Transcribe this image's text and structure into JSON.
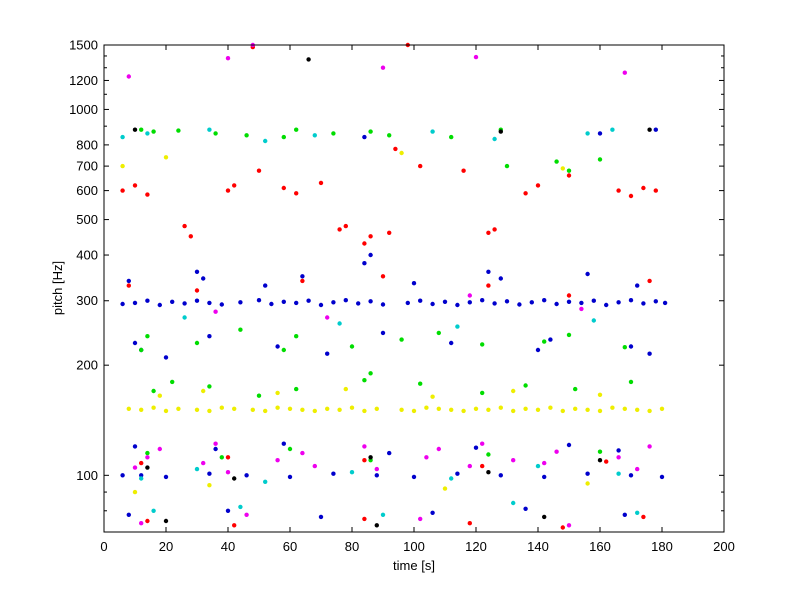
{
  "chart_data": {
    "type": "scatter",
    "title": "",
    "xlabel": "time [s]",
    "ylabel": "pitch [Hz]",
    "xlim": [
      0,
      200
    ],
    "ylim": [
      70,
      1500
    ],
    "y_scale": "log",
    "grid": false,
    "legend": "none",
    "x_ticks": [
      0,
      20,
      40,
      60,
      80,
      100,
      120,
      140,
      160,
      180,
      200
    ],
    "x_tick_labels": [
      "0",
      "20",
      "40",
      "60",
      "80",
      "100",
      "120",
      "140",
      "160",
      "180",
      "200"
    ],
    "y_ticks": [
      100,
      200,
      300,
      400,
      500,
      600,
      700,
      800,
      1000,
      1200,
      1500
    ],
    "y_tick_labels": [
      "100",
      "200",
      "300",
      "400",
      "500",
      "600",
      "700",
      "800",
      "1000",
      "1200",
      "1500"
    ],
    "series": [
      {
        "color": "#0000cc",
        "points": [
          [
            6,
            294
          ],
          [
            10,
            296
          ],
          [
            14,
            300
          ],
          [
            18,
            292
          ],
          [
            22,
            298
          ],
          [
            26,
            295
          ],
          [
            30,
            300
          ],
          [
            34,
            296
          ],
          [
            38,
            293
          ],
          [
            44,
            297
          ],
          [
            50,
            301
          ],
          [
            54,
            294
          ],
          [
            58,
            298
          ],
          [
            62,
            296
          ],
          [
            66,
            300
          ],
          [
            70,
            292
          ],
          [
            74,
            297
          ],
          [
            78,
            301
          ],
          [
            82,
            295
          ],
          [
            86,
            299
          ],
          [
            90,
            293
          ],
          [
            98,
            296
          ],
          [
            102,
            300
          ],
          [
            106,
            294
          ],
          [
            110,
            298
          ],
          [
            114,
            292
          ],
          [
            118,
            297
          ],
          [
            122,
            301
          ],
          [
            126,
            295
          ],
          [
            130,
            299
          ],
          [
            134,
            293
          ],
          [
            138,
            297
          ],
          [
            142,
            301
          ],
          [
            146,
            294
          ],
          [
            150,
            298
          ],
          [
            154,
            296
          ],
          [
            158,
            300
          ],
          [
            162,
            292
          ],
          [
            166,
            297
          ],
          [
            170,
            301
          ],
          [
            174,
            295
          ],
          [
            178,
            299
          ],
          [
            181,
            296
          ],
          [
            8,
            340
          ],
          [
            30,
            360
          ],
          [
            32,
            345
          ],
          [
            52,
            330
          ],
          [
            64,
            350
          ],
          [
            84,
            380
          ],
          [
            86,
            400
          ],
          [
            100,
            335
          ],
          [
            124,
            360
          ],
          [
            128,
            345
          ],
          [
            156,
            355
          ],
          [
            172,
            330
          ],
          [
            10,
            230
          ],
          [
            12,
            220
          ],
          [
            20,
            210
          ],
          [
            34,
            240
          ],
          [
            56,
            225
          ],
          [
            72,
            215
          ],
          [
            90,
            245
          ],
          [
            112,
            230
          ],
          [
            140,
            220
          ],
          [
            144,
            235
          ],
          [
            170,
            225
          ],
          [
            176,
            215
          ],
          [
            6,
            100
          ],
          [
            12,
            100
          ],
          [
            20,
            99
          ],
          [
            34,
            101
          ],
          [
            46,
            100
          ],
          [
            60,
            99
          ],
          [
            74,
            101
          ],
          [
            88,
            100
          ],
          [
            100,
            99
          ],
          [
            114,
            101
          ],
          [
            128,
            100
          ],
          [
            142,
            99
          ],
          [
            156,
            101
          ],
          [
            170,
            100
          ],
          [
            180,
            99
          ],
          [
            10,
            120
          ],
          [
            36,
            118
          ],
          [
            58,
            122
          ],
          [
            92,
            115
          ],
          [
            120,
            119
          ],
          [
            150,
            121
          ],
          [
            166,
            117
          ],
          [
            8,
            78
          ],
          [
            40,
            80
          ],
          [
            70,
            77
          ],
          [
            106,
            79
          ],
          [
            136,
            81
          ],
          [
            168,
            78
          ],
          [
            84,
            840
          ],
          [
            160,
            860
          ],
          [
            178,
            880
          ]
        ]
      },
      {
        "color": "#ff0000",
        "points": [
          [
            6,
            600
          ],
          [
            10,
            620
          ],
          [
            14,
            585
          ],
          [
            26,
            480
          ],
          [
            28,
            450
          ],
          [
            40,
            600
          ],
          [
            42,
            620
          ],
          [
            50,
            680
          ],
          [
            58,
            610
          ],
          [
            62,
            590
          ],
          [
            70,
            630
          ],
          [
            76,
            470
          ],
          [
            78,
            480
          ],
          [
            84,
            430
          ],
          [
            86,
            450
          ],
          [
            92,
            460
          ],
          [
            94,
            780
          ],
          [
            102,
            700
          ],
          [
            116,
            680
          ],
          [
            124,
            460
          ],
          [
            126,
            470
          ],
          [
            136,
            590
          ],
          [
            140,
            620
          ],
          [
            150,
            660
          ],
          [
            166,
            600
          ],
          [
            170,
            580
          ],
          [
            174,
            610
          ],
          [
            178,
            600
          ],
          [
            98,
            1500
          ],
          [
            48,
            1480
          ],
          [
            8,
            330
          ],
          [
            30,
            320
          ],
          [
            64,
            340
          ],
          [
            90,
            350
          ],
          [
            124,
            330
          ],
          [
            150,
            310
          ],
          [
            176,
            340
          ],
          [
            12,
            108
          ],
          [
            40,
            112
          ],
          [
            84,
            110
          ],
          [
            122,
            106
          ],
          [
            162,
            109
          ],
          [
            14,
            75
          ],
          [
            42,
            73
          ],
          [
            84,
            76
          ],
          [
            118,
            74
          ],
          [
            148,
            72
          ],
          [
            174,
            77
          ]
        ]
      },
      {
        "color": "#00dd00",
        "points": [
          [
            12,
            880
          ],
          [
            16,
            870
          ],
          [
            24,
            875
          ],
          [
            36,
            860
          ],
          [
            46,
            850
          ],
          [
            58,
            840
          ],
          [
            62,
            880
          ],
          [
            74,
            860
          ],
          [
            86,
            870
          ],
          [
            92,
            850
          ],
          [
            112,
            840
          ],
          [
            128,
            880
          ],
          [
            130,
            700
          ],
          [
            146,
            720
          ],
          [
            150,
            680
          ],
          [
            160,
            730
          ],
          [
            12,
            220
          ],
          [
            14,
            240
          ],
          [
            30,
            230
          ],
          [
            44,
            250
          ],
          [
            58,
            220
          ],
          [
            62,
            240
          ],
          [
            80,
            225
          ],
          [
            96,
            235
          ],
          [
            108,
            245
          ],
          [
            122,
            228
          ],
          [
            142,
            232
          ],
          [
            150,
            242
          ],
          [
            168,
            224
          ],
          [
            16,
            170
          ],
          [
            22,
            180
          ],
          [
            34,
            175
          ],
          [
            50,
            165
          ],
          [
            62,
            172
          ],
          [
            84,
            182
          ],
          [
            86,
            190
          ],
          [
            102,
            178
          ],
          [
            122,
            168
          ],
          [
            136,
            176
          ],
          [
            152,
            172
          ],
          [
            170,
            180
          ],
          [
            14,
            115
          ],
          [
            38,
            112
          ],
          [
            60,
            118
          ],
          [
            86,
            110
          ],
          [
            124,
            114
          ],
          [
            160,
            116
          ]
        ]
      },
      {
        "color": "#eeee00",
        "points": [
          [
            8,
            152
          ],
          [
            12,
            151
          ],
          [
            16,
            153
          ],
          [
            20,
            150
          ],
          [
            24,
            152
          ],
          [
            30,
            151
          ],
          [
            34,
            150
          ],
          [
            38,
            153
          ],
          [
            42,
            152
          ],
          [
            48,
            151
          ],
          [
            52,
            150
          ],
          [
            56,
            153
          ],
          [
            60,
            152
          ],
          [
            64,
            151
          ],
          [
            68,
            150
          ],
          [
            72,
            152
          ],
          [
            76,
            151
          ],
          [
            80,
            153
          ],
          [
            84,
            150
          ],
          [
            88,
            152
          ],
          [
            96,
            151
          ],
          [
            100,
            150
          ],
          [
            104,
            153
          ],
          [
            108,
            152
          ],
          [
            112,
            151
          ],
          [
            116,
            150
          ],
          [
            120,
            152
          ],
          [
            124,
            151
          ],
          [
            128,
            153
          ],
          [
            132,
            150
          ],
          [
            136,
            152
          ],
          [
            140,
            151
          ],
          [
            144,
            153
          ],
          [
            148,
            150
          ],
          [
            152,
            152
          ],
          [
            156,
            151
          ],
          [
            160,
            150
          ],
          [
            164,
            153
          ],
          [
            168,
            152
          ],
          [
            172,
            151
          ],
          [
            176,
            150
          ],
          [
            180,
            152
          ],
          [
            18,
            165
          ],
          [
            32,
            170
          ],
          [
            56,
            168
          ],
          [
            78,
            172
          ],
          [
            106,
            164
          ],
          [
            132,
            170
          ],
          [
            160,
            166
          ],
          [
            6,
            700
          ],
          [
            20,
            740
          ],
          [
            96,
            760
          ],
          [
            148,
            690
          ],
          [
            10,
            90
          ],
          [
            34,
            94
          ],
          [
            110,
            92
          ],
          [
            156,
            95
          ]
        ]
      },
      {
        "color": "#ee00ee",
        "points": [
          [
            10,
            105
          ],
          [
            14,
            112
          ],
          [
            18,
            118
          ],
          [
            32,
            108
          ],
          [
            36,
            122
          ],
          [
            40,
            102
          ],
          [
            56,
            110
          ],
          [
            64,
            115
          ],
          [
            68,
            106
          ],
          [
            84,
            120
          ],
          [
            88,
            104
          ],
          [
            104,
            112
          ],
          [
            108,
            118
          ],
          [
            118,
            106
          ],
          [
            122,
            122
          ],
          [
            132,
            110
          ],
          [
            142,
            108
          ],
          [
            146,
            116
          ],
          [
            166,
            112
          ],
          [
            172,
            104
          ],
          [
            176,
            120
          ],
          [
            8,
            1230
          ],
          [
            40,
            1380
          ],
          [
            48,
            1500
          ],
          [
            90,
            1300
          ],
          [
            120,
            1390
          ],
          [
            168,
            1260
          ],
          [
            36,
            280
          ],
          [
            72,
            270
          ],
          [
            118,
            310
          ],
          [
            154,
            285
          ],
          [
            12,
            74
          ],
          [
            46,
            78
          ],
          [
            102,
            76
          ],
          [
            150,
            73
          ]
        ]
      },
      {
        "color": "#00cccc",
        "points": [
          [
            6,
            840
          ],
          [
            14,
            860
          ],
          [
            34,
            880
          ],
          [
            52,
            820
          ],
          [
            68,
            850
          ],
          [
            106,
            870
          ],
          [
            126,
            830
          ],
          [
            156,
            860
          ],
          [
            164,
            880
          ],
          [
            12,
            98
          ],
          [
            30,
            104
          ],
          [
            52,
            96
          ],
          [
            80,
            102
          ],
          [
            112,
            98
          ],
          [
            140,
            106
          ],
          [
            166,
            101
          ],
          [
            16,
            80
          ],
          [
            44,
            82
          ],
          [
            90,
            78
          ],
          [
            132,
            84
          ],
          [
            172,
            79
          ],
          [
            26,
            270
          ],
          [
            76,
            260
          ],
          [
            114,
            255
          ],
          [
            158,
            265
          ]
        ]
      },
      {
        "color": "#000000",
        "points": [
          [
            10,
            880
          ],
          [
            66,
            1370
          ],
          [
            128,
            870
          ],
          [
            176,
            880
          ],
          [
            14,
            105
          ],
          [
            42,
            98
          ],
          [
            86,
            112
          ],
          [
            124,
            102
          ],
          [
            160,
            110
          ],
          [
            20,
            75
          ],
          [
            88,
            73
          ],
          [
            142,
            77
          ]
        ]
      }
    ]
  }
}
